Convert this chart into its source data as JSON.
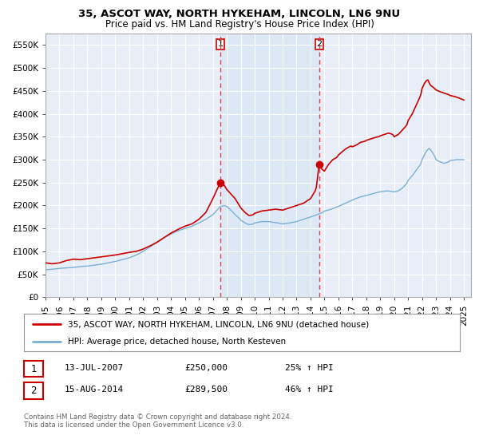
{
  "title": "35, ASCOT WAY, NORTH HYKEHAM, LINCOLN, LN6 9NU",
  "subtitle": "Price paid vs. HM Land Registry's House Price Index (HPI)",
  "ylabel_ticks": [
    "£0",
    "£50K",
    "£100K",
    "£150K",
    "£200K",
    "£250K",
    "£300K",
    "£350K",
    "£400K",
    "£450K",
    "£500K",
    "£550K"
  ],
  "ytick_vals": [
    0,
    50000,
    100000,
    150000,
    200000,
    250000,
    300000,
    350000,
    400000,
    450000,
    500000,
    550000
  ],
  "ylim": [
    0,
    575000
  ],
  "xlim_start": 1995.0,
  "xlim_end": 2025.5,
  "xtick_years": [
    1995,
    1996,
    1997,
    1998,
    1999,
    2000,
    2001,
    2002,
    2003,
    2004,
    2005,
    2006,
    2007,
    2008,
    2009,
    2010,
    2011,
    2012,
    2013,
    2014,
    2015,
    2016,
    2017,
    2018,
    2019,
    2020,
    2021,
    2022,
    2023,
    2024,
    2025
  ],
  "background_color": "#ffffff",
  "plot_bg_color": "#e8eef8",
  "grid_color": "#ffffff",
  "red_line_color": "#cc0000",
  "blue_line_color": "#7bafd4",
  "shade_color": "#dce8f5",
  "transaction1_x": 2007.54,
  "transaction1_y": 250000,
  "transaction2_x": 2014.62,
  "transaction2_y": 289500,
  "vline_color": "#dd4444",
  "legend_label_red": "35, ASCOT WAY, NORTH HYKEHAM, LINCOLN, LN6 9NU (detached house)",
  "legend_label_blue": "HPI: Average price, detached house, North Kesteven",
  "table_row1": [
    "1",
    "13-JUL-2007",
    "£250,000",
    "25% ↑ HPI"
  ],
  "table_row2": [
    "2",
    "15-AUG-2014",
    "£289,500",
    "46% ↑ HPI"
  ],
  "footer": "Contains HM Land Registry data © Crown copyright and database right 2024.\nThis data is licensed under the Open Government Licence v3.0."
}
